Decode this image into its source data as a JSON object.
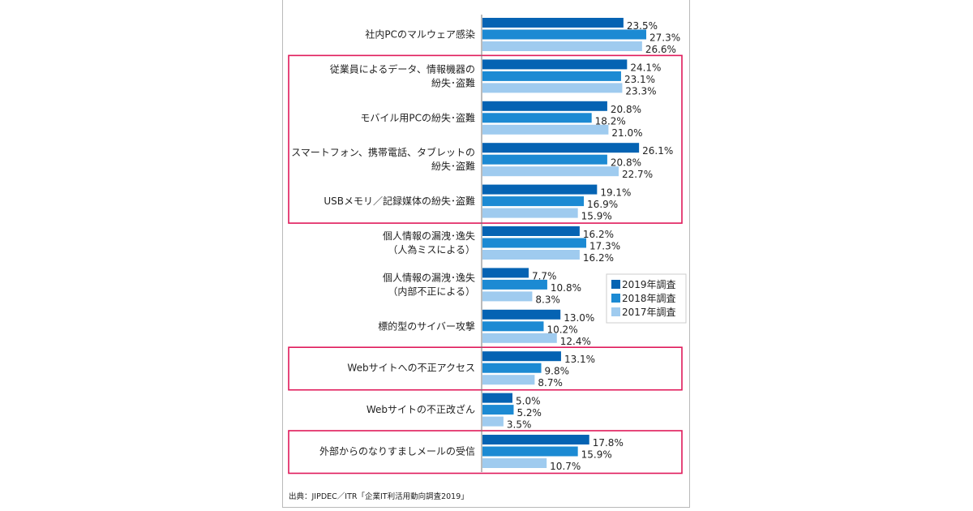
{
  "chart_data": {
    "type": "bar",
    "orientation": "horizontal",
    "categories": [
      [
        "社内PCのマルウェア感染"
      ],
      [
        "従業員によるデータ、情報機器の",
        "紛失･盗難"
      ],
      [
        "モバイル用PCの紛失･盗難"
      ],
      [
        "スマートフォン、携帯電話、タブレットの",
        "紛失･盗難"
      ],
      [
        "USBメモリ／記録媒体の紛失･盗難"
      ],
      [
        "個人情報の漏洩･逸失",
        "（人為ミスによる）"
      ],
      [
        "個人情報の漏洩･逸失",
        "（内部不正による）"
      ],
      [
        "標的型のサイバー攻撃"
      ],
      [
        "Webサイトへの不正アクセス"
      ],
      [
        "Webサイトの不正改ざん"
      ],
      [
        "外部からのなりすましメールの受信"
      ]
    ],
    "series": [
      {
        "name": "2019年調査",
        "color": "#0563b3",
        "values": [
          23.5,
          24.1,
          20.8,
          26.1,
          19.1,
          16.2,
          7.7,
          13.0,
          13.1,
          5.0,
          17.8
        ]
      },
      {
        "name": "2018年調査",
        "color": "#1c8ad3",
        "values": [
          27.3,
          23.1,
          18.2,
          20.8,
          16.9,
          17.3,
          10.8,
          10.2,
          9.8,
          5.2,
          15.9
        ]
      },
      {
        "name": "2017年調査",
        "color": "#9fcbef",
        "values": [
          26.6,
          23.3,
          21.0,
          22.7,
          15.9,
          16.2,
          8.3,
          12.4,
          8.7,
          3.5,
          10.7
        ]
      }
    ],
    "value_suffix": "%",
    "xlim": [
      0,
      30
    ],
    "grid": false,
    "legend_position": "right-middle",
    "highlight_groups": [
      [
        1,
        4
      ],
      [
        8,
        8
      ],
      [
        10,
        10
      ]
    ],
    "highlight_color": "#e0195a"
  },
  "source_note": "出典：JIPDEC／ITR「企業IT利活用動向調査2019」"
}
